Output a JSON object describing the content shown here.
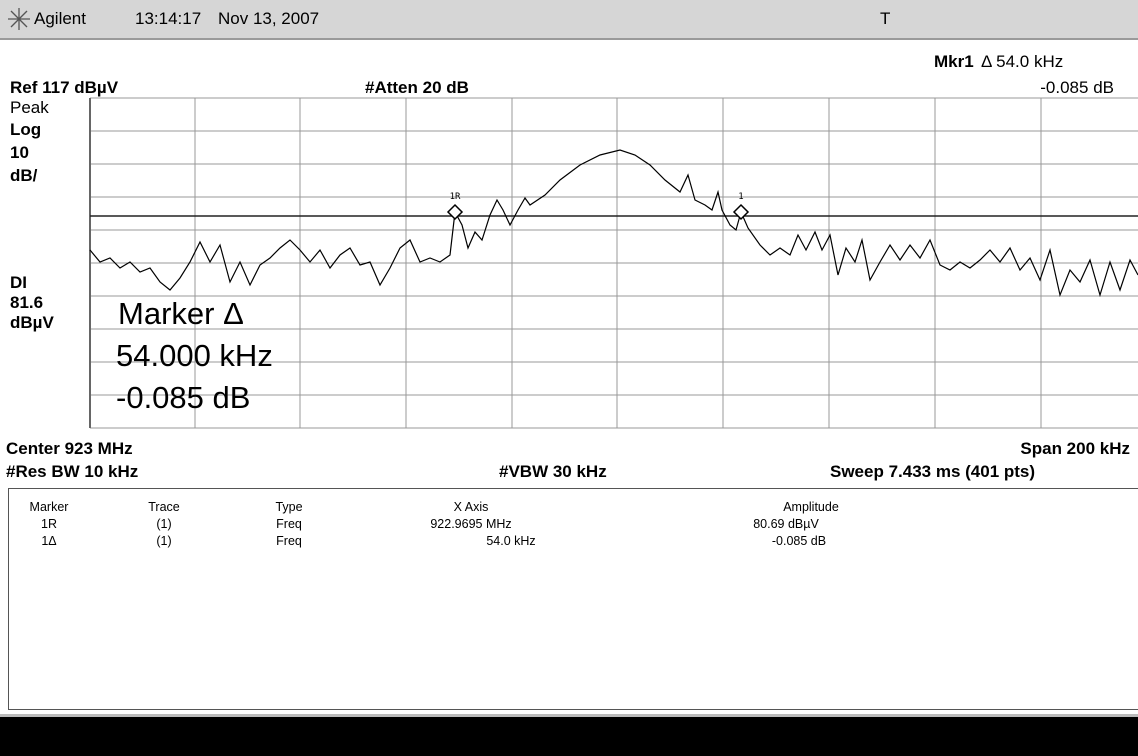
{
  "header": {
    "brand": "Agilent",
    "time": "13:14:17",
    "date": "Nov 13, 2007",
    "indicator": "T"
  },
  "marker_readout": {
    "label": "Mkr1",
    "delta": "Δ 54.0 kHz",
    "amplitude": "-0.085 dB"
  },
  "settings": {
    "reference": "Ref 117 dBµV",
    "attenuation": "#Atten 20 dB",
    "center": "Center 923 MHz",
    "span": "Span 200 kHz",
    "res_bw": "#Res BW 10 kHz",
    "vbw": "#VBW 30 kHz",
    "sweep": "Sweep 7.433 ms (401 pts)"
  },
  "left_labels": {
    "detector": "Peak",
    "scale_type": "Log",
    "scale_value": "10",
    "scale_unit": "dB/",
    "display_line": "DI",
    "display_line_value": "81.6",
    "display_line_unit": "dBµV"
  },
  "plot_markers": {
    "reference": "1R",
    "delta": "1"
  },
  "marker_box": {
    "title": "Marker Δ",
    "frequency": "54.000 kHz",
    "amplitude": "-0.085 dB"
  },
  "table": {
    "headers": [
      "Marker",
      "Trace",
      "Type",
      "X Axis",
      "Amplitude"
    ],
    "rows": [
      [
        "1R",
        "(1)",
        "Freq",
        "922.9695 MHz",
        "80.69 dBµV"
      ],
      [
        "1Δ",
        "(1)",
        "Freq",
        "54.0 kHz",
        "-0.085 dB"
      ]
    ]
  }
}
